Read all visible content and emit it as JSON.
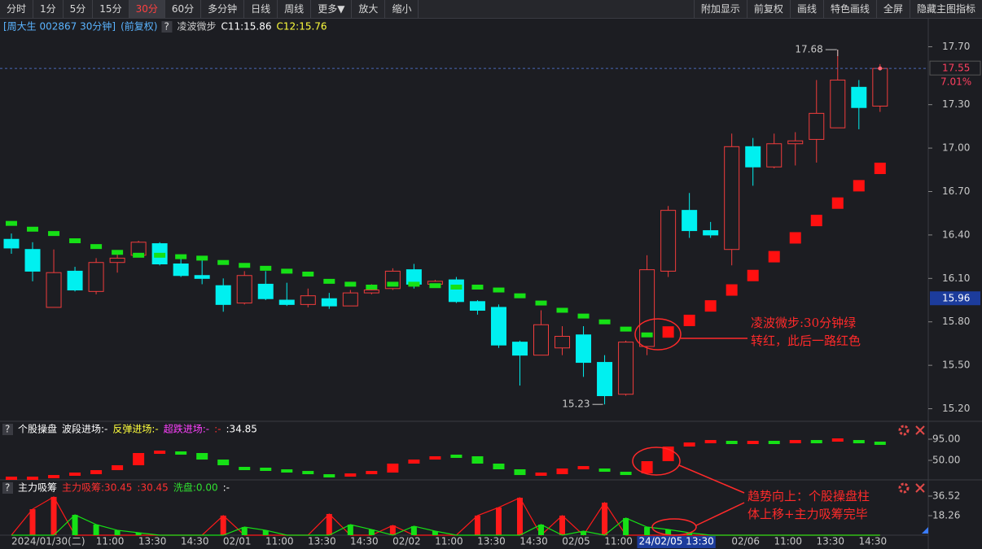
{
  "toolbar": {
    "left": [
      "分时",
      "1分",
      "5分",
      "15分",
      "30分",
      "60分",
      "多分钟",
      "日线",
      "周线",
      "更多▼",
      "放大",
      "缩小"
    ],
    "right": [
      "附加显示",
      "前复权",
      "画线",
      "特色画线",
      "全屏",
      "隐藏主图指标"
    ],
    "active_index": 4
  },
  "chart_data": [
    {
      "type": "candlestick",
      "header": {
        "title": "[周大生 002867 30分钟]",
        "adjust": "(前复权)",
        "help": "?",
        "items": [
          "C11:15.86",
          "C12:15.76"
        ],
        "item_colors": [
          "#ffffff",
          "#ffff3c"
        ]
      },
      "categories": [
        "2024/01/30(二)",
        null,
        null,
        null,
        null,
        "11:00",
        null,
        "13:30",
        null,
        "14:30",
        null,
        "02/01",
        null,
        "11:00",
        null,
        "13:30",
        null,
        "14:30",
        null,
        "02/02",
        null,
        "11:00",
        null,
        "13:30",
        null,
        "14:30",
        null,
        "02/05",
        null,
        "11:00",
        null,
        "24/02/05 13:30",
        null,
        null,
        null,
        "02/06",
        null,
        "11:00",
        null,
        "13:30",
        null,
        "14:30"
      ],
      "cursor": 31,
      "open": [
        16.37,
        16.3,
        15.9,
        16.15,
        16.01,
        16.21,
        16.26,
        16.34,
        16.2,
        16.12,
        16.05,
        15.93,
        16.06,
        15.95,
        15.92,
        15.96,
        15.91,
        16.0,
        16.03,
        16.16,
        16.06,
        16.09,
        15.94,
        15.9,
        15.66,
        15.57,
        15.62,
        15.71,
        15.52,
        15.3,
        15.63,
        16.15,
        16.57,
        16.43,
        16.3,
        17.01,
        16.87,
        17.03,
        17.06,
        17.14,
        17.42,
        17.29
      ],
      "high": [
        16.41,
        16.35,
        16.3,
        16.18,
        16.24,
        16.28,
        16.36,
        16.35,
        16.24,
        16.24,
        16.1,
        16.15,
        16.15,
        16.07,
        16.03,
        16.0,
        16.02,
        16.06,
        16.17,
        16.2,
        16.09,
        16.11,
        15.95,
        15.92,
        15.67,
        15.88,
        15.77,
        15.77,
        15.57,
        15.67,
        16.26,
        16.6,
        16.69,
        16.49,
        17.1,
        17.07,
        17.1,
        17.11,
        17.47,
        17.68,
        17.47,
        17.58
      ],
      "low": [
        16.27,
        16.08,
        15.9,
        16.01,
        15.99,
        16.14,
        16.25,
        16.19,
        16.11,
        16.06,
        15.87,
        15.92,
        15.95,
        15.91,
        15.9,
        15.89,
        15.91,
        15.99,
        16.02,
        16.03,
        16.04,
        15.93,
        15.85,
        15.62,
        15.36,
        15.57,
        15.57,
        15.42,
        15.23,
        15.29,
        15.57,
        16.11,
        16.38,
        16.38,
        16.19,
        16.74,
        16.86,
        16.88,
        16.9,
        17.14,
        17.13,
        17.25
      ],
      "close": [
        16.31,
        16.15,
        16.14,
        16.02,
        16.21,
        16.24,
        16.35,
        16.2,
        16.12,
        16.1,
        15.92,
        16.12,
        15.96,
        15.92,
        15.98,
        15.91,
        16.0,
        16.02,
        16.15,
        16.06,
        16.08,
        15.94,
        15.88,
        15.64,
        15.57,
        15.78,
        15.7,
        15.52,
        15.29,
        15.66,
        16.16,
        16.57,
        16.43,
        16.4,
        17.01,
        16.87,
        17.03,
        17.05,
        17.24,
        17.47,
        17.28,
        17.55
      ],
      "up_color": "#f03c3c",
      "down_color": "#00f0f0",
      "series": [
        {
          "name": "凌波微步",
          "values": [
            16.48,
            16.44,
            16.41,
            16.36,
            16.32,
            16.28,
            16.26,
            16.26,
            16.25,
            16.24,
            16.21,
            16.19,
            16.17,
            16.15,
            16.13,
            16.08,
            16.06,
            16.04,
            16.06,
            16.06,
            16.05,
            16.04,
            16.04,
            16.02,
            15.98,
            15.93,
            15.88,
            15.84,
            15.8,
            15.75,
            15.71,
            15.73,
            15.81,
            15.91,
            16.02,
            16.12,
            16.25,
            16.38,
            16.5,
            16.62,
            16.74,
            16.86
          ],
          "colors": [
            "#16e016",
            "#16e016",
            "#16e016",
            "#16e016",
            "#16e016",
            "#16e016",
            "#16e016",
            "#16e016",
            "#16e016",
            "#16e016",
            "#16e016",
            "#16e016",
            "#16e016",
            "#16e016",
            "#16e016",
            "#16e016",
            "#16e016",
            "#16e016",
            "#16e016",
            "#16e016",
            "#16e016",
            "#16e016",
            "#16e016",
            "#16e016",
            "#16e016",
            "#16e016",
            "#16e016",
            "#16e016",
            "#16e016",
            "#16e016",
            "#16e016",
            "#ff1010",
            "#ff1010",
            "#ff1010",
            "#ff1010",
            "#ff1010",
            "#ff1010",
            "#ff1010",
            "#ff1010",
            "#ff1010",
            "#ff1010",
            "#ff1010"
          ]
        }
      ],
      "ylim": [
        15.13,
        17.77
      ],
      "yticks": [
        {
          "value": 17.7,
          "label": "17.70"
        },
        {
          "value": 17.3,
          "label": "17.30"
        },
        {
          "value": 17,
          "label": "17.00"
        },
        {
          "value": 16.7,
          "label": "16.70"
        },
        {
          "value": 16.4,
          "label": "16.40"
        },
        {
          "value": 16.1,
          "label": "16.10"
        },
        {
          "value": 15.8,
          "label": "15.80"
        },
        {
          "value": 15.5,
          "label": "15.50"
        },
        {
          "value": 15.2,
          "label": "15.20"
        }
      ],
      "high_mark": 17.68,
      "low_mark": 15.23,
      "last_price": 17.55,
      "change": {
        "value": 7.01,
        "label": "7.01%"
      },
      "cursor_price": 15.96,
      "annotations": [
        [
          "凌波微步:30分钟绿",
          "转红，此后一路红色"
        ],
        [
          "趋势向上：个股操盘柱",
          "体上移+主力吸筹完毕"
        ]
      ]
    },
    {
      "type": "bar",
      "header": {
        "help": "?",
        "title": "个股操盘",
        "items": [
          "波段进场:-",
          "反弹进场:-",
          "超跌进场:-",
          ":-",
          ":34.85"
        ],
        "item_colors": [
          "#ffffff",
          "#ffff3c",
          "#ff40ff",
          "#ff3030",
          "#ffffff"
        ]
      },
      "ylim": [
        8.5,
        100.2
      ],
      "yticks": [
        {
          "value": 95,
          "label": "95.00"
        },
        {
          "value": 50,
          "label": "50.00"
        }
      ],
      "series": [
        {
          "values": [
            11.9,
            11.9,
            15.4,
            20.6,
            29.2,
            39.6,
            65.6,
            67.3,
            65.6,
            51.7,
            39.6,
            32.7,
            31.0,
            27.5,
            24.0,
            17.1,
            18.8,
            24.0,
            43.1,
            51.7,
            58.7,
            58.7,
            43.1,
            31.0,
            18.8,
            20.6,
            32.7,
            34.4,
            29.2,
            22.3,
            48.3,
            79.4,
            88.1,
            89.8,
            88.1,
            88.1,
            88.1,
            89.8,
            89.8,
            93.3,
            89.8,
            86.4
          ],
          "colors": [
            "#ff1010",
            "#ff1010",
            "#ff1010",
            "#ff1010",
            "#ff1010",
            "#ff1010",
            "#ff1010",
            "#ff1010",
            "#16e016",
            "#16e016",
            "#16e016",
            "#16e016",
            "#16e016",
            "#16e016",
            "#16e016",
            "#16e016",
            "#ff1010",
            "#ff1010",
            "#ff1010",
            "#ff1010",
            "#ff1010",
            "#16e016",
            "#16e016",
            "#16e016",
            "#16e016",
            "#ff1010",
            "#ff1010",
            "#ff1010",
            "#16e016",
            "#16e016",
            "#ff1010",
            "#ff1010",
            "#ff1010",
            "#ff1010",
            "#16e016",
            "#ff1010",
            "#16e016",
            "#ff1010",
            "#16e016",
            "#ff1010",
            "#16e016",
            "#16e016"
          ]
        }
      ]
    },
    {
      "type": "bar-line",
      "header": {
        "help": "?",
        "title": "主力吸筹",
        "items": [
          "主力吸筹:30.45",
          ":30.45",
          "洗盘:0.00",
          ":-"
        ],
        "item_colors": [
          "#ff3030",
          "#ff3030",
          "#30e030",
          "#ffffff"
        ]
      },
      "ylim": [
        0,
        40.3
      ],
      "yticks": [
        36.52,
        18.26
      ],
      "series": [
        {
          "color": "#ff1a1a",
          "values": [
            0,
            24.3,
            35.8,
            0,
            0,
            0,
            0,
            0,
            0,
            0,
            18.3,
            0,
            0,
            0,
            0,
            19.8,
            0,
            0,
            9.1,
            0,
            0,
            0,
            18.3,
            25.9,
            35.0,
            0,
            18.3,
            0,
            30.4,
            0,
            0,
            0,
            0,
            0,
            0,
            0,
            0,
            0,
            0,
            0,
            0,
            0
          ]
        },
        {
          "color": "#16e016",
          "values": [
            0,
            0,
            0,
            19.0,
            9.9,
            4.6,
            2.3,
            0,
            0,
            0,
            0,
            7.6,
            4.6,
            0,
            0,
            0,
            9.9,
            5.3,
            0,
            8.4,
            3.8,
            0,
            0,
            0,
            0,
            9.9,
            0,
            3.8,
            0,
            16.0,
            7.6,
            5.3,
            2.3,
            0,
            0,
            0,
            0,
            0,
            0,
            0,
            0,
            0
          ]
        }
      ]
    }
  ]
}
